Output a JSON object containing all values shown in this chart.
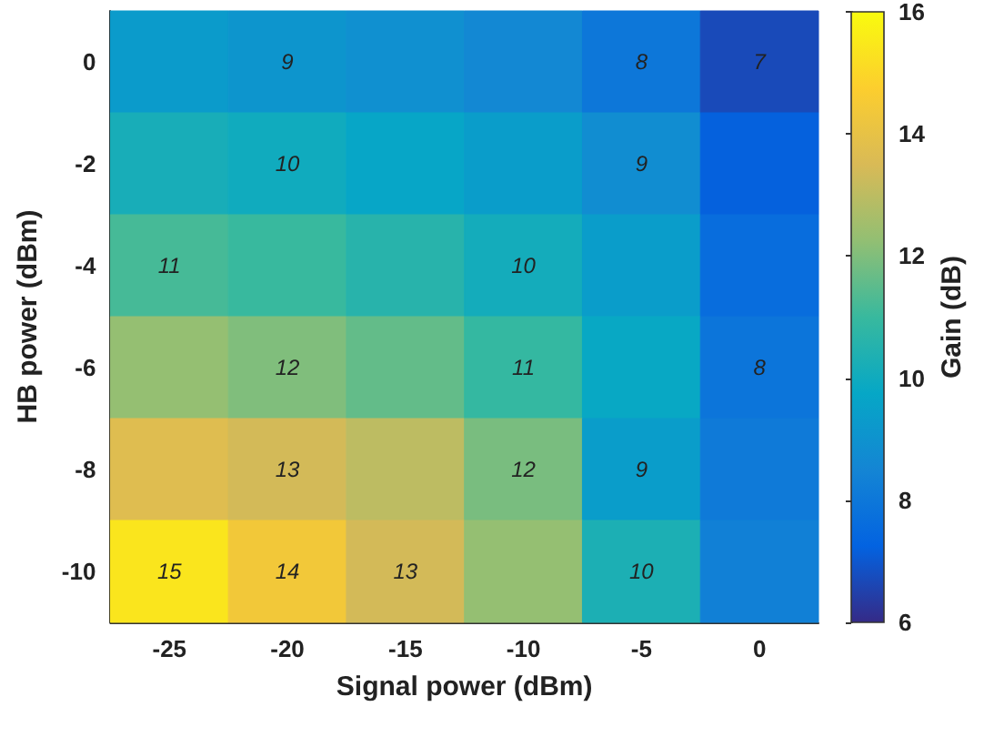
{
  "chart_data": {
    "type": "heatmap",
    "xlabel": "Signal power (dBm)",
    "ylabel": "HB power (dBm)",
    "clabel": "Gain (dB)",
    "categories": [
      "-25",
      "-20",
      "-15",
      "-10",
      "-5",
      "0"
    ],
    "y_categories": [
      "0",
      "-2",
      "-4",
      "-6",
      "-8",
      "-10"
    ],
    "cells": [
      [
        9.3,
        9.1,
        8.9,
        8.6,
        8.0,
        6.7
      ],
      [
        10.2,
        10.0,
        9.7,
        9.4,
        8.8,
        7.2
      ],
      [
        11.2,
        11.0,
        10.6,
        10.1,
        9.4,
        7.6
      ],
      [
        12.3,
        12.0,
        11.6,
        10.9,
        9.8,
        7.9
      ],
      [
        13.7,
        13.4,
        13.0,
        11.9,
        9.4,
        8.1
      ],
      [
        15.4,
        14.4,
        13.4,
        12.3,
        10.3,
        8.3
      ]
    ],
    "cell_labels": [
      [
        null,
        "9",
        null,
        null,
        "8",
        "7"
      ],
      [
        null,
        "10",
        null,
        null,
        "9",
        null
      ],
      [
        "11",
        null,
        null,
        "10",
        null,
        null
      ],
      [
        null,
        "12",
        null,
        "11",
        null,
        "8"
      ],
      [
        null,
        "13",
        null,
        "12",
        "9",
        null
      ],
      [
        "15",
        "14",
        "13",
        null,
        "10",
        null
      ]
    ],
    "clim": [
      6,
      16
    ],
    "cticks": [
      6,
      8,
      10,
      12,
      14,
      16
    ]
  }
}
